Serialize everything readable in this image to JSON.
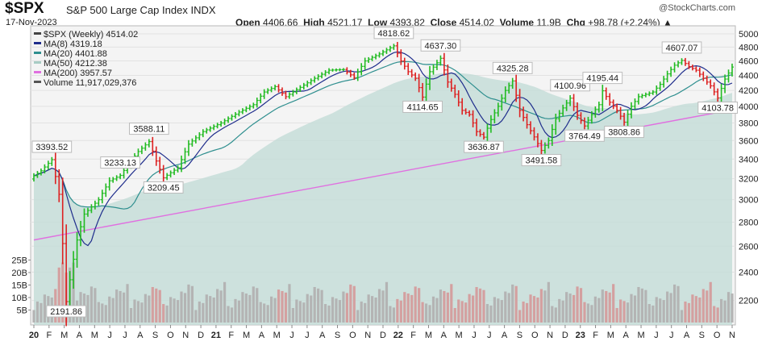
{
  "header": {
    "symbol": "$SPX",
    "name": "S&P 500 Large Cap Index",
    "exchange": "INDX",
    "date": "17-Nov-2023",
    "open_label": "Open",
    "open": "4406.66",
    "high_label": "High",
    "high": "4521.17",
    "low_label": "Low",
    "low": "4393.82",
    "close_label": "Close",
    "close": "4514.02",
    "volume_label": "Volume",
    "volume": "11.9B",
    "chg_label": "Chg",
    "chg": "+98.78 (+2.24%)",
    "watermark": "@StockCharts.com"
  },
  "colors": {
    "up": "#22bb22",
    "down": "#dd2222",
    "ma8": "#1f2d8c",
    "ma20": "#2f8f8f",
    "ma50": "#c5ddd8",
    "ma200": "#e070e0",
    "volume": "#c8c8c8"
  },
  "chart_data": {
    "type": "line",
    "legend": [
      {
        "key": "price",
        "label": "$SPX (Weekly) 4514.02"
      },
      {
        "key": "ma8",
        "label": "MA(8) 4319.18"
      },
      {
        "key": "ma20",
        "label": "MA(20) 4401.88"
      },
      {
        "key": "ma50",
        "label": "MA(50) 4212.38"
      },
      {
        "key": "ma200",
        "label": "MA(200) 3957.57"
      },
      {
        "key": "volume",
        "label": "Volume 11,917,029,376"
      }
    ],
    "y_scale": "log",
    "ylim": [
      2050,
      5100
    ],
    "y_ticks": [
      5000,
      4800,
      4600,
      4400,
      4200,
      4000,
      3800,
      3600,
      3400,
      3200,
      3000,
      2800,
      2600,
      2400,
      2200
    ],
    "volume_ticks": [
      {
        "v": 5,
        "label": "5B"
      },
      {
        "v": 10,
        "label": "10B"
      },
      {
        "v": 15,
        "label": "15B"
      },
      {
        "v": 20,
        "label": "20B"
      },
      {
        "v": 25,
        "label": "25B"
      }
    ],
    "x_labels": [
      "20",
      "F",
      "M",
      "A",
      "M",
      "J",
      "J",
      "A",
      "S",
      "O",
      "N",
      "D",
      "21",
      "F",
      "M",
      "A",
      "M",
      "J",
      "J",
      "A",
      "S",
      "O",
      "N",
      "D",
      "22",
      "F",
      "M",
      "A",
      "M",
      "J",
      "J",
      "A",
      "S",
      "O",
      "N",
      "D",
      "23",
      "F",
      "M",
      "A",
      "M",
      "J",
      "J",
      "A",
      "S",
      "O",
      "N"
    ],
    "anchors": [
      [
        0,
        3230
      ],
      [
        2,
        3280
      ],
      [
        5,
        3393.52
      ],
      [
        7,
        3050
      ],
      [
        9,
        2191.86
      ],
      [
        12,
        2650
      ],
      [
        14,
        2870
      ],
      [
        18,
        3000
      ],
      [
        21,
        3180
      ],
      [
        24,
        3233.13
      ],
      [
        29,
        3480
      ],
      [
        32,
        3588.11
      ],
      [
        34,
        3380
      ],
      [
        36,
        3209.45
      ],
      [
        40,
        3310
      ],
      [
        43,
        3560
      ],
      [
        47,
        3700
      ],
      [
        52,
        3800
      ],
      [
        57,
        3930
      ],
      [
        61,
        4020
      ],
      [
        64,
        4180
      ],
      [
        67,
        4250
      ],
      [
        70,
        4120
      ],
      [
        74,
        4240
      ],
      [
        78,
        4360
      ],
      [
        82,
        4470
      ],
      [
        86,
        4480
      ],
      [
        89,
        4370
      ],
      [
        92,
        4600
      ],
      [
        96,
        4700
      ],
      [
        100,
        4818.62
      ],
      [
        102,
        4600
      ],
      [
        104,
        4450
      ],
      [
        106,
        4360
      ],
      [
        108,
        4114.65
      ],
      [
        110,
        4450
      ],
      [
        113,
        4637.3
      ],
      [
        115,
        4310
      ],
      [
        117,
        4150
      ],
      [
        119,
        3950
      ],
      [
        121,
        3900
      ],
      [
        123,
        3700
      ],
      [
        125,
        3636.87
      ],
      [
        127,
        3840
      ],
      [
        129,
        4000
      ],
      [
        131,
        4200
      ],
      [
        133,
        4325.28
      ],
      [
        135,
        3950
      ],
      [
        137,
        3780
      ],
      [
        139,
        3640
      ],
      [
        141,
        3491.58
      ],
      [
        143,
        3600
      ],
      [
        145,
        3850
      ],
      [
        147,
        3980
      ],
      [
        149,
        4100.96
      ],
      [
        151,
        3890
      ],
      [
        153,
        3764.49
      ],
      [
        155,
        3900
      ],
      [
        157,
        4020
      ],
      [
        158,
        4195.44
      ],
      [
        160,
        4050
      ],
      [
        162,
        3950
      ],
      [
        164,
        3808.86
      ],
      [
        166,
        4000
      ],
      [
        168,
        4120
      ],
      [
        170,
        4150
      ],
      [
        172,
        4180
      ],
      [
        174,
        4280
      ],
      [
        176,
        4420
      ],
      [
        178,
        4540
      ],
      [
        180,
        4607.07
      ],
      [
        182,
        4520
      ],
      [
        184,
        4470
      ],
      [
        186,
        4360
      ],
      [
        188,
        4260
      ],
      [
        190,
        4103.78
      ],
      [
        192,
        4350
      ],
      [
        194,
        4514.02
      ]
    ],
    "ma200_endpoints": [
      [
        0,
        2650
      ],
      [
        194,
        3957.57
      ]
    ],
    "annotations": [
      {
        "i": 5,
        "v": 3393.52,
        "label": "3393.52",
        "pos": "above"
      },
      {
        "i": 9,
        "v": 2191.86,
        "label": "2191.86",
        "pos": "below"
      },
      {
        "i": 24,
        "v": 3233.13,
        "label": "3233.13",
        "pos": "above"
      },
      {
        "i": 32,
        "v": 3588.11,
        "label": "3588.11",
        "pos": "above"
      },
      {
        "i": 36,
        "v": 3209.45,
        "label": "3209.45",
        "pos": "below"
      },
      {
        "i": 100,
        "v": 4818.62,
        "label": "4818.62",
        "pos": "above"
      },
      {
        "i": 108,
        "v": 4114.65,
        "label": "4114.65",
        "pos": "below"
      },
      {
        "i": 113,
        "v": 4637.3,
        "label": "4637.30",
        "pos": "above"
      },
      {
        "i": 125,
        "v": 3636.87,
        "label": "3636.87",
        "pos": "below"
      },
      {
        "i": 133,
        "v": 4325.28,
        "label": "4325.28",
        "pos": "above"
      },
      {
        "i": 141,
        "v": 3491.58,
        "label": "3491.58",
        "pos": "below"
      },
      {
        "i": 149,
        "v": 4100.96,
        "label": "4100.96",
        "pos": "above"
      },
      {
        "i": 153,
        "v": 3764.49,
        "label": "3764.49",
        "pos": "below"
      },
      {
        "i": 158,
        "v": 4195.44,
        "label": "4195.44",
        "pos": "above"
      },
      {
        "i": 164,
        "v": 3808.86,
        "label": "3808.86",
        "pos": "below"
      },
      {
        "i": 180,
        "v": 4607.07,
        "label": "4607.07",
        "pos": "above"
      },
      {
        "i": 190,
        "v": 4103.78,
        "label": "4103.78",
        "pos": "below"
      }
    ]
  }
}
